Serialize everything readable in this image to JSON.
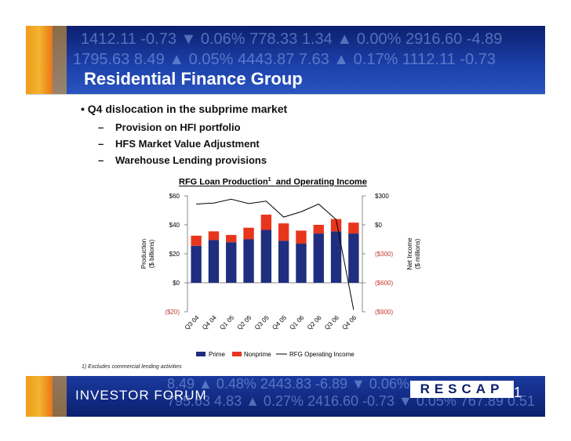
{
  "slide": {
    "title": "Residential Finance Group",
    "bullet": "Q4 dislocation in the subprime market",
    "sub_bullets": [
      "Provision on HFI portfolio",
      "HFS Market Value Adjustment",
      "Warehouse Lending provisions"
    ],
    "footnote": "1)  Excludes commercial lending activities",
    "footer_left": "INVESTOR FORUM",
    "footer_logo": "RESCAP",
    "page_number": "21",
    "ticker_text": [
      "1412.11 -0.73 ▼ 0.06%   778.33 1.34 ▲ 0.00%  2916.60 -4.89",
      "1795.63 8.49 ▲ 0.05%   4443.87 7.63 ▲ 0.17%  1112.11 -0.73",
      "8.49 ▲ 0.48%   2443.83 -6.89 ▼ 0.06%",
      "795.63 4.83 ▲ 0.27%   2416.60 -0.73 ▼ 0.05%  767.89 0.51"
    ]
  },
  "colors": {
    "prime": "#1f2e7e",
    "nonprime": "#e8361d",
    "income_line": "#000000",
    "banner": "#1b3fa8",
    "accent": "#f39a1c"
  },
  "chart_data": {
    "type": "bar",
    "title": "RFG Loan Production",
    "title_footnote_marker": "1",
    "title_suffix": "and Operating Income",
    "categories": [
      "Q3 04",
      "Q4 04",
      "Q1 05",
      "Q2 05",
      "Q3 05",
      "Q4 05",
      "Q1 06",
      "Q2 06",
      "Q3 06",
      "Q4 06"
    ],
    "series": [
      {
        "name": "Prime",
        "values": [
          25.5,
          29.5,
          28,
          30,
          36.5,
          29,
          27,
          34,
          35.5,
          34
        ]
      },
      {
        "name": "Nonprime",
        "values": [
          7,
          6,
          5,
          8,
          10.5,
          12,
          9,
          6,
          8.5,
          7.5
        ]
      }
    ],
    "line_series": {
      "name": "RFG Operating Income",
      "values": [
        215,
        225,
        265,
        220,
        245,
        80,
        135,
        215,
        55,
        -880
      ]
    },
    "stacked": true,
    "ylabel_left": [
      "Production",
      "($ billions)"
    ],
    "ylabel_right": [
      "Net Income",
      "($ millions)"
    ],
    "ylim_left": [
      -20,
      60
    ],
    "ylim_right": [
      -900,
      300
    ],
    "yticks_left": [
      "($20)",
      "$0",
      "$20",
      "$40",
      "$60"
    ],
    "yticks_left_values": [
      -20,
      0,
      20,
      40,
      60
    ],
    "yticks_right": [
      "($900)",
      "($600)",
      "($300)",
      "$0",
      "$300"
    ],
    "yticks_right_values": [
      -900,
      -600,
      -300,
      0,
      300
    ],
    "legend": [
      "Prime",
      "Nonprime",
      "RFG Operating Income"
    ],
    "legend_position": "bottom",
    "grid": false
  }
}
